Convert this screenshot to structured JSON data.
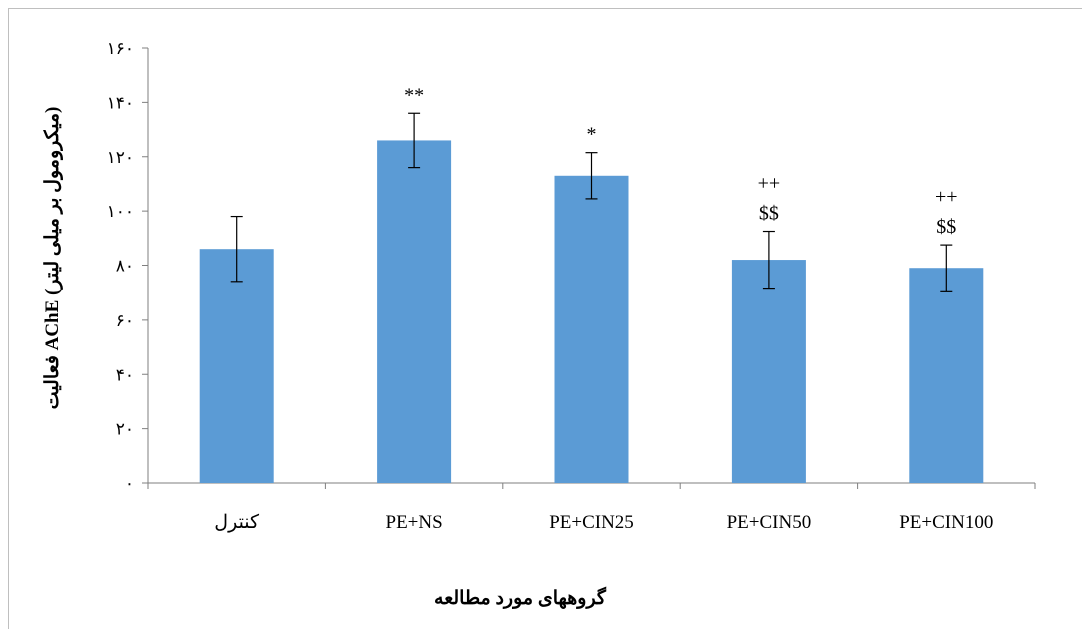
{
  "chart_data": {
    "type": "bar",
    "categories": [
      "کنترل",
      "PE+NS",
      "PE+CIN25",
      "PE+CIN50",
      "PE+CIN100"
    ],
    "values": [
      86,
      126,
      113,
      82,
      79
    ],
    "errors": [
      12,
      10,
      8.5,
      10.5,
      8.5
    ],
    "annotations": [
      [],
      [
        "**"
      ],
      [
        "*"
      ],
      [
        "++",
        "$$"
      ],
      [
        "++",
        "$$"
      ]
    ],
    "ylim": [
      0,
      160
    ],
    "yticks": [
      0,
      20,
      40,
      60,
      80,
      100,
      120,
      140,
      160
    ],
    "ytick_labels": [
      "۰",
      "۲۰",
      "۴۰",
      "۶۰",
      "۸۰",
      "۱۰۰",
      "۱۲۰",
      "۱۴۰",
      "۱۶۰"
    ],
    "xlabel": "گروههای مورد مطالعه",
    "ylabel": "فعالیت AChE (میکرومول بر میلی لیتر)",
    "bar_color": "#5b9bd5",
    "axis_color": "#7f7f7f",
    "grid": false
  }
}
